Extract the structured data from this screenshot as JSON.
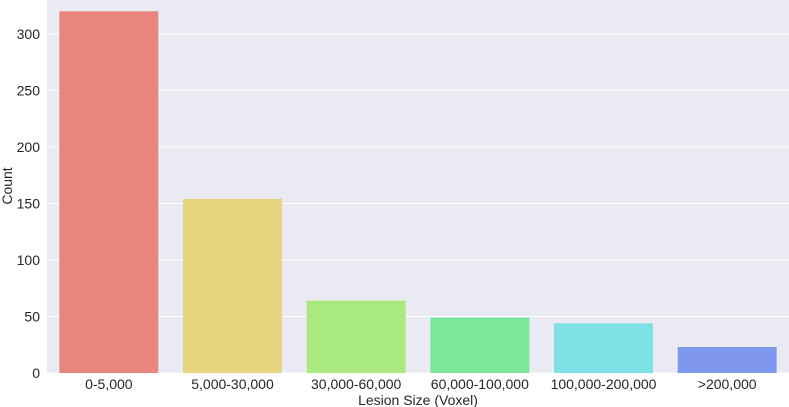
{
  "chart_data": {
    "type": "bar",
    "title": "",
    "xlabel": "Lesion Size (Voxel)",
    "ylabel": "Count",
    "categories": [
      "0-5,000",
      "5,000-30,000",
      "30,000-60,000",
      "60,000-100,000",
      "100,000-200,000",
      ">200,000"
    ],
    "values": [
      320,
      154,
      64,
      49,
      44,
      23
    ],
    "colors": [
      "#e8857f",
      "#e6d47e",
      "#aae97d",
      "#7ce79b",
      "#7ee1e6",
      "#8097ef"
    ],
    "ylim": [
      0,
      330
    ],
    "yticks": [
      0,
      50,
      100,
      150,
      200,
      250,
      300
    ],
    "grid": true,
    "background": "#eaeaf2"
  }
}
